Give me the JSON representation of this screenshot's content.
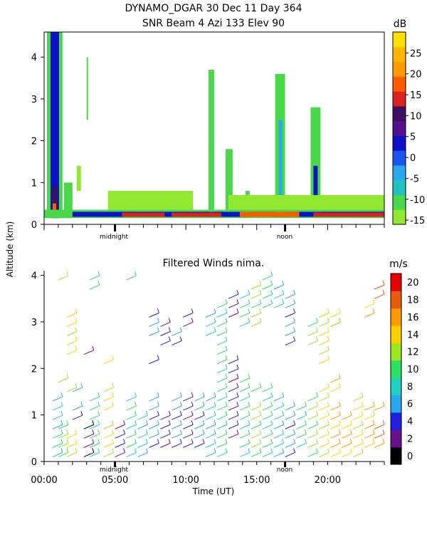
{
  "header": {
    "title_line1": "DYNAMO_DGAR  30 Dec 11 Day 364",
    "title_line2": "SNR Beam 4 Azi 133 Elev 90"
  },
  "shared": {
    "ylabel": "Altitude (km)",
    "xlabel": "Time (UT)",
    "midnight_label": "midnight",
    "noon_label": "noon"
  },
  "chart_data": [
    {
      "type": "heatmap",
      "title": "SNR Beam 4 Azi 133 Elev 90",
      "ylabel": "Altitude (km)",
      "xlim_hours": [
        0,
        24
      ],
      "ylim": [
        0,
        4.6
      ],
      "yticks": [
        0,
        1,
        2,
        3,
        4
      ],
      "colorbar": {
        "unit": "dB",
        "ticks": [
          -15,
          -10,
          -5,
          0,
          5,
          10,
          15,
          20,
          25
        ],
        "range": [
          -16,
          30
        ],
        "colors": [
          "#90e830",
          "#4ad74a",
          "#22c0c0",
          "#2aa8ee",
          "#1b55f0",
          "#1010c8",
          "#551090",
          "#3e1060",
          "#dd2020",
          "#ff5a00",
          "#ff9900",
          "#ffb400",
          "#ffe000"
        ]
      },
      "blobs": [
        {
          "x": [
            0.2,
            1.3
          ],
          "y": [
            0.15,
            4.6
          ],
          "level": -12
        },
        {
          "x": [
            0.45,
            1.05
          ],
          "y": [
            0.15,
            4.6
          ],
          "level": 3
        },
        {
          "x": [
            0.55,
            0.95
          ],
          "y": [
            0.15,
            0.9
          ],
          "level": 12
        },
        {
          "x": [
            0.6,
            0.85
          ],
          "y": [
            0.15,
            0.5
          ],
          "level": 18
        },
        {
          "x": [
            1.4,
            2.0
          ],
          "y": [
            0.15,
            1.0
          ],
          "level": -12
        },
        {
          "x": [
            2.3,
            2.6
          ],
          "y": [
            0.8,
            1.4
          ],
          "level": -13
        },
        {
          "x": [
            3.0,
            3.1
          ],
          "y": [
            2.5,
            4.0
          ],
          "level": -12
        },
        {
          "x": [
            0,
            24
          ],
          "y": [
            0.15,
            0.35
          ],
          "level": -12
        },
        {
          "x": [
            2.0,
            24
          ],
          "y": [
            0.18,
            0.3
          ],
          "level": 2
        },
        {
          "x": [
            5.5,
            8.5
          ],
          "y": [
            0.18,
            0.28
          ],
          "level": 14
        },
        {
          "x": [
            9.0,
            12.5
          ],
          "y": [
            0.18,
            0.28
          ],
          "level": 14
        },
        {
          "x": [
            13.8,
            18.0
          ],
          "y": [
            0.18,
            0.3
          ],
          "level": 16
        },
        {
          "x": [
            19.0,
            24
          ],
          "y": [
            0.18,
            0.28
          ],
          "level": 14
        },
        {
          "x": [
            11.6,
            12.0
          ],
          "y": [
            0.3,
            3.7
          ],
          "level": -12
        },
        {
          "x": [
            12.8,
            13.3
          ],
          "y": [
            0.3,
            1.8
          ],
          "level": -12
        },
        {
          "x": [
            16.3,
            17.0
          ],
          "y": [
            0.3,
            3.6
          ],
          "level": -12
        },
        {
          "x": [
            16.55,
            16.8
          ],
          "y": [
            0.4,
            2.5
          ],
          "level": -3
        },
        {
          "x": [
            18.8,
            19.5
          ],
          "y": [
            0.3,
            2.8
          ],
          "level": -12
        },
        {
          "x": [
            19.0,
            19.3
          ],
          "y": [
            0.4,
            1.4
          ],
          "level": 2
        },
        {
          "x": [
            14.2,
            14.5
          ],
          "y": [
            0.3,
            0.8
          ],
          "level": -12
        },
        {
          "x": [
            4.5,
            10.5
          ],
          "y": [
            0.35,
            0.8
          ],
          "level": -13
        },
        {
          "x": [
            13.0,
            24
          ],
          "y": [
            0.35,
            0.7
          ],
          "level": -13
        }
      ]
    },
    {
      "type": "scatter",
      "title": "Filtered Winds nima.",
      "xlabel": "Time (UT)",
      "ylabel": "Altitude (km)",
      "xlim_hours": [
        0,
        24
      ],
      "ylim": [
        0,
        4.1
      ],
      "yticks": [
        0,
        1,
        2,
        3,
        4
      ],
      "xtick_labels": [
        "00:00",
        "05:00",
        "10:00",
        "15:00",
        "20:00"
      ],
      "xtick_values": [
        0,
        5,
        10,
        15,
        20
      ],
      "colorbar": {
        "unit": "m/s",
        "ticks": [
          0,
          2,
          4,
          6,
          8,
          10,
          12,
          14,
          16,
          18,
          20
        ],
        "range": [
          0,
          22
        ],
        "colors": [
          "#000000",
          "#6a0f8e",
          "#2020e0",
          "#2aa8ee",
          "#20d0c0",
          "#2ee060",
          "#9ee620",
          "#ffd000",
          "#ff9a00",
          "#e85a10",
          "#e80000"
        ]
      },
      "barb_columns": [
        {
          "t": 0.6,
          "alts": [
            0.1,
            0.3,
            0.5,
            0.7,
            0.9,
            1.1,
            1.3
          ],
          "speed": 8
        },
        {
          "t": 1.0,
          "alts": [
            0.1,
            0.3,
            0.5,
            0.7,
            1.7,
            3.9
          ],
          "speed": 12
        },
        {
          "t": 1.6,
          "alts": [
            0.1,
            0.3,
            0.5,
            1.5,
            2.3,
            2.5,
            2.7,
            2.9,
            3.1
          ],
          "speed": 14
        },
        {
          "t": 2.0,
          "alts": [
            0.9,
            1.1,
            1.5
          ],
          "speed": 6
        },
        {
          "t": 2.8,
          "alts": [
            0.1,
            0.3,
            0.5,
            0.7,
            2.3
          ],
          "speed": 2
        },
        {
          "t": 3.2,
          "alts": [
            0.1,
            0.3,
            0.5,
            0.7,
            0.9,
            1.1,
            1.3,
            3.7,
            3.9
          ],
          "speed": 10
        },
        {
          "t": 4.2,
          "alts": [
            0.1,
            0.3,
            0.5,
            0.7,
            1.1,
            1.3,
            1.5,
            2.1
          ],
          "speed": 14
        },
        {
          "t": 5.0,
          "alts": [
            0.1,
            0.3,
            0.5,
            0.7
          ],
          "speed": 4
        },
        {
          "t": 5.8,
          "alts": [
            0.1,
            0.3,
            0.5,
            0.7,
            0.9,
            1.1,
            1.3,
            3.9
          ],
          "speed": 10
        },
        {
          "t": 6.6,
          "alts": [
            0.1,
            0.3,
            0.5,
            0.7,
            0.9
          ],
          "speed": 8
        },
        {
          "t": 7.4,
          "alts": [
            0.3,
            0.5,
            0.7,
            0.9,
            1.1,
            1.3,
            2.1,
            2.7,
            2.9,
            3.1
          ],
          "speed": 6
        },
        {
          "t": 8.2,
          "alts": [
            0.3,
            0.5,
            0.7,
            0.9,
            2.5,
            2.7,
            2.9
          ],
          "speed": 4
        },
        {
          "t": 9.0,
          "alts": [
            0.3,
            0.5,
            0.7,
            0.9,
            1.1,
            1.3,
            2.5,
            2.7
          ],
          "speed": 6
        },
        {
          "t": 9.8,
          "alts": [
            0.3,
            0.5,
            0.7,
            0.9,
            1.1,
            1.3,
            2.9,
            3.1
          ],
          "speed": 4
        },
        {
          "t": 10.6,
          "alts": [
            0.3,
            0.5,
            0.7,
            0.9,
            1.1,
            1.3
          ],
          "speed": 6
        },
        {
          "t": 11.4,
          "alts": [
            0.1,
            0.3,
            0.5,
            0.7,
            0.9,
            1.1,
            1.3,
            2.7,
            2.9,
            3.1
          ],
          "speed": 8
        },
        {
          "t": 12.2,
          "alts": [
            0.1,
            0.3,
            0.5,
            0.7,
            0.9,
            1.1,
            1.3,
            1.5,
            1.7,
            1.9,
            2.1,
            2.3,
            2.5,
            2.7,
            2.9,
            3.1,
            3.3
          ],
          "speed": 10
        },
        {
          "t": 13.0,
          "alts": [
            0.5,
            0.7,
            0.9,
            1.1,
            1.3,
            1.5,
            1.7,
            1.9,
            2.1,
            3.1,
            3.3,
            3.5
          ],
          "speed": 4
        },
        {
          "t": 13.8,
          "alts": [
            0.1,
            0.3,
            0.5,
            0.7,
            0.9,
            1.1,
            1.3,
            1.5,
            1.7,
            2.9,
            3.1,
            3.3,
            3.5
          ],
          "speed": 10
        },
        {
          "t": 14.6,
          "alts": [
            0.1,
            0.3,
            0.5,
            0.7,
            0.9,
            1.1,
            1.5,
            2.9,
            3.1,
            3.3,
            3.5,
            3.7
          ],
          "speed": 12
        },
        {
          "t": 15.4,
          "alts": [
            0.1,
            0.3,
            0.5,
            0.7,
            0.9,
            1.1,
            1.3,
            1.5,
            3.3,
            3.5,
            3.7,
            3.9
          ],
          "speed": 10
        },
        {
          "t": 16.2,
          "alts": [
            0.1,
            0.3,
            0.5,
            0.7,
            0.9,
            1.1,
            1.3,
            3.3,
            3.5,
            3.7
          ],
          "speed": 8
        },
        {
          "t": 17.0,
          "alts": [
            0.1,
            0.3,
            0.5,
            0.7,
            0.9,
            1.1,
            2.5,
            2.7,
            2.9,
            3.1,
            3.3,
            3.5
          ],
          "speed": 6
        },
        {
          "t": 17.8,
          "alts": [
            0.3,
            0.5,
            0.7,
            0.9,
            1.1
          ],
          "speed": 10
        },
        {
          "t": 18.6,
          "alts": [
            0.1,
            0.3,
            0.5,
            0.7,
            0.9,
            1.1,
            1.3,
            2.5,
            2.7,
            2.9
          ],
          "speed": 12
        },
        {
          "t": 19.4,
          "alts": [
            0.1,
            0.3,
            0.5,
            0.7,
            0.9,
            1.1,
            1.3,
            1.5,
            2.1,
            2.3,
            2.5,
            2.7,
            2.9,
            3.1
          ],
          "speed": 14
        },
        {
          "t": 20.2,
          "alts": [
            0.1,
            0.3,
            0.5,
            0.7,
            0.9,
            1.1,
            1.5,
            1.7,
            2.9,
            3.1
          ],
          "speed": 16
        },
        {
          "t": 21.0,
          "alts": [
            0.1,
            0.3,
            0.5,
            0.7,
            0.9
          ],
          "speed": 16
        },
        {
          "t": 21.8,
          "alts": [
            0.1,
            0.3,
            0.5,
            0.7,
            0.9,
            1.1,
            1.3
          ],
          "speed": 14
        },
        {
          "t": 22.6,
          "alts": [
            0.3,
            0.5,
            0.7,
            0.9,
            1.1,
            3.1,
            3.3
          ],
          "speed": 16
        },
        {
          "t": 23.3,
          "alts": [
            0.3,
            0.5,
            0.7,
            1.1,
            3.5,
            3.7
          ],
          "speed": 18
        }
      ]
    }
  ]
}
